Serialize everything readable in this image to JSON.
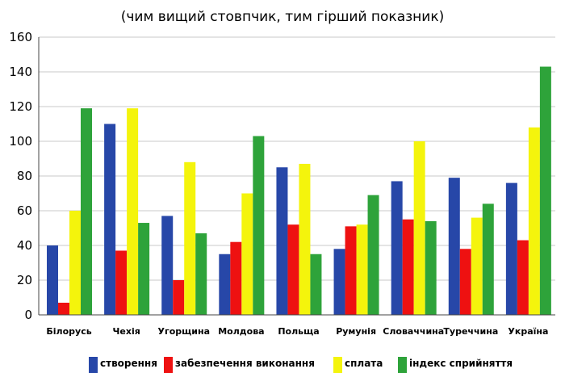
{
  "chart_data": {
    "type": "bar",
    "title": "",
    "subtitle": "(чим вищий стовпчик, тим гірший показник)",
    "xlabel": "",
    "ylabel": "",
    "ylim": [
      0,
      160
    ],
    "yticks": [
      0,
      20,
      40,
      60,
      80,
      100,
      120,
      140,
      160
    ],
    "grid": true,
    "legend": "bottom",
    "categories": [
      "Білорусь",
      "Чехія",
      "Угорщина",
      "Молдова",
      "Польща",
      "Румунія",
      "Словаччина",
      "Туреччина",
      "Україна"
    ],
    "series": [
      {
        "name": "створення",
        "color": "#2747a8",
        "values": [
          40,
          110,
          57,
          35,
          85,
          38,
          77,
          79,
          76
        ]
      },
      {
        "name": "забезпечення виконання",
        "color": "#ee1111",
        "values": [
          7,
          37,
          20,
          42,
          52,
          51,
          55,
          38,
          43
        ]
      },
      {
        "name": "сплата",
        "color": "#f4f40c",
        "values": [
          60,
          119,
          88,
          70,
          87,
          52,
          100,
          56,
          108
        ]
      },
      {
        "name": "індекс сприйняття",
        "color": "#2ea33a",
        "values": [
          119,
          53,
          47,
          103,
          35,
          69,
          54,
          64,
          143
        ]
      }
    ]
  }
}
